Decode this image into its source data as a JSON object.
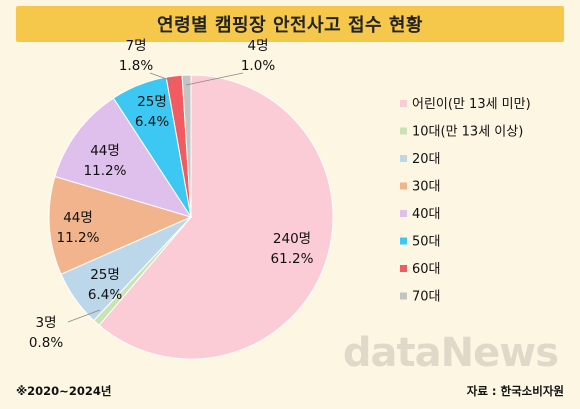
{
  "chart_data": {
    "type": "pie",
    "title": "연령별 캠핑장 안전사고 접수 현황",
    "slices": [
      {
        "name": "어린이(만 13세 미만)",
        "count_label": "240명",
        "pct_label": "61.2%",
        "value": 61.2,
        "color": "#fbcbd6"
      },
      {
        "name": "10대(만 13세 이상)",
        "count_label": "3명",
        "pct_label": "0.8%",
        "value": 0.8,
        "color": "#c9e3b4"
      },
      {
        "name": "20대",
        "count_label": "25명",
        "pct_label": "6.4%",
        "value": 6.4,
        "color": "#bcd7ea"
      },
      {
        "name": "30대",
        "count_label": "44명",
        "pct_label": "11.2%",
        "value": 11.2,
        "color": "#f2b48c"
      },
      {
        "name": "40대",
        "count_label": "44명",
        "pct_label": "11.2%",
        "value": 11.2,
        "color": "#dfc0ec"
      },
      {
        "name": "50대",
        "count_label": "25명",
        "pct_label": "6.4%",
        "value": 6.4,
        "color": "#3dc8f4"
      },
      {
        "name": "60대",
        "count_label": "7명",
        "pct_label": "1.8%",
        "value": 1.8,
        "color": "#f25c60"
      },
      {
        "name": "70대",
        "count_label": "4명",
        "pct_label": "1.0%",
        "value": 1.0,
        "color": "#c4c4c4"
      }
    ],
    "legend_position": "right"
  },
  "footnote": "※2020~2024년",
  "source": "자료 : 한국소비자원",
  "watermark": "dataNews"
}
